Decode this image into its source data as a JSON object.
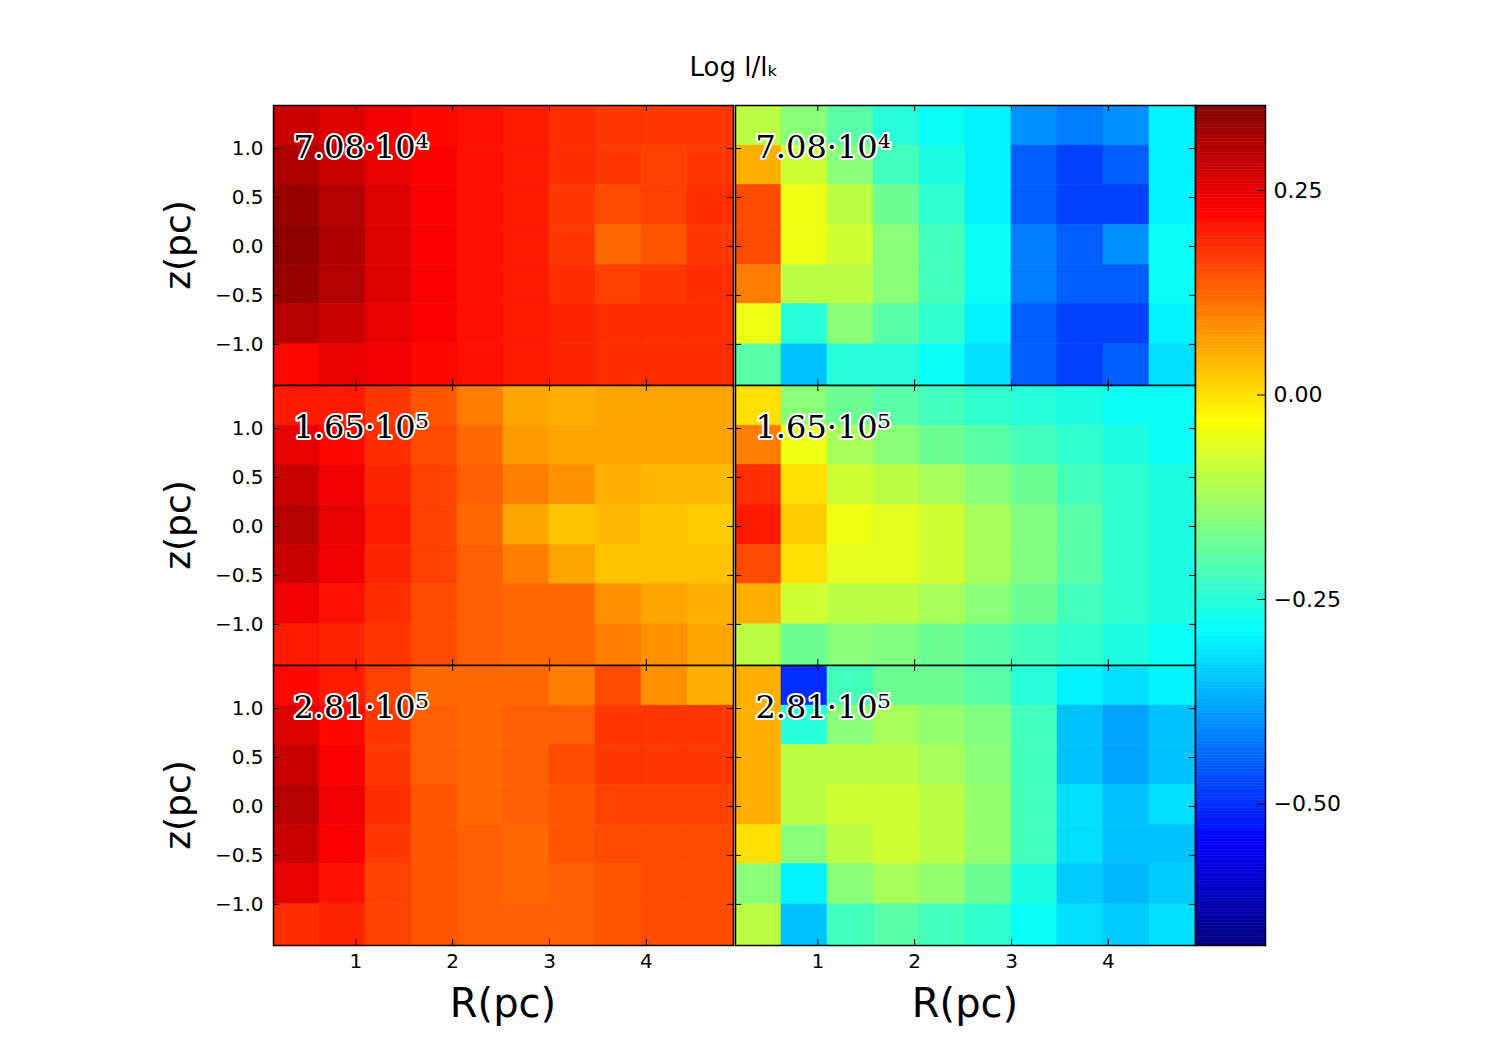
{
  "chart_data": {
    "type": "heatmap",
    "title": "Log l/lₖ",
    "xlabel": "R(pc)",
    "ylabel": "z(pc)",
    "xlim": [
      0.15,
      4.9
    ],
    "ylim": [
      -1.42,
      1.44
    ],
    "xticks": [
      1,
      2,
      3,
      4
    ],
    "yticks": [
      {
        "value": 1.0,
        "label": "1.0"
      },
      {
        "value": 0.5,
        "label": "0.5"
      },
      {
        "value": 0.0,
        "label": "0.0"
      },
      {
        "value": -0.5,
        "label": "−0.5"
      },
      {
        "value": -1.0,
        "label": "−1.0"
      }
    ],
    "x_edges": [
      0.15,
      0.625,
      1.1,
      1.575,
      2.05,
      2.525,
      3.0,
      3.475,
      3.95,
      4.425,
      4.9
    ],
    "y_edges": [
      1.44,
      1.03,
      0.63,
      0.22,
      -0.19,
      -0.59,
      -1.0,
      -1.42
    ],
    "colorbar": {
      "range": [
        -0.673,
        0.354
      ],
      "ticks": [
        {
          "value": 0.25,
          "label": "0.25"
        },
        {
          "value": 0.0,
          "label": "0.00"
        },
        {
          "value": -0.25,
          "label": "−0.25"
        },
        {
          "value": -0.5,
          "label": "−0.50"
        }
      ]
    },
    "panels": [
      {
        "annotation": "7.08·10⁴",
        "cells": [
          [
            0.28,
            0.26,
            0.24,
            0.22,
            0.21,
            0.2,
            0.18,
            0.17,
            0.17,
            0.17
          ],
          [
            0.31,
            0.28,
            0.25,
            0.23,
            0.21,
            0.2,
            0.18,
            0.17,
            0.16,
            0.17
          ],
          [
            0.33,
            0.3,
            0.26,
            0.23,
            0.21,
            0.2,
            0.17,
            0.15,
            0.16,
            0.18
          ],
          [
            0.34,
            0.31,
            0.26,
            0.23,
            0.21,
            0.2,
            0.17,
            0.12,
            0.14,
            0.17
          ],
          [
            0.33,
            0.3,
            0.26,
            0.23,
            0.21,
            0.2,
            0.18,
            0.16,
            0.17,
            0.18
          ],
          [
            0.3,
            0.28,
            0.25,
            0.23,
            0.21,
            0.2,
            0.19,
            0.18,
            0.18,
            0.18
          ],
          [
            0.22,
            0.25,
            0.24,
            0.22,
            0.21,
            0.2,
            0.19,
            0.18,
            0.18,
            0.18
          ]
        ]
      },
      {
        "annotation": "7.08·10⁴",
        "cells": [
          [
            -0.1,
            -0.15,
            -0.2,
            -0.25,
            -0.28,
            -0.3,
            -0.4,
            -0.42,
            -0.4,
            -0.3
          ],
          [
            0.05,
            -0.08,
            -0.15,
            -0.22,
            -0.26,
            -0.3,
            -0.45,
            -0.48,
            -0.45,
            -0.3
          ],
          [
            0.15,
            -0.05,
            -0.1,
            -0.18,
            -0.24,
            -0.3,
            -0.45,
            -0.48,
            -0.48,
            -0.3
          ],
          [
            0.15,
            -0.05,
            -0.08,
            -0.15,
            -0.22,
            -0.28,
            -0.42,
            -0.45,
            -0.4,
            -0.28
          ],
          [
            0.1,
            -0.1,
            -0.1,
            -0.15,
            -0.22,
            -0.28,
            -0.42,
            -0.45,
            -0.45,
            -0.28
          ],
          [
            -0.05,
            -0.25,
            -0.15,
            -0.2,
            -0.24,
            -0.3,
            -0.45,
            -0.48,
            -0.48,
            -0.3
          ],
          [
            -0.2,
            -0.35,
            -0.25,
            -0.25,
            -0.28,
            -0.32,
            -0.45,
            -0.48,
            -0.45,
            -0.32
          ]
        ]
      },
      {
        "annotation": "1.65·10⁵",
        "cells": [
          [
            0.2,
            0.2,
            0.17,
            0.14,
            0.1,
            0.06,
            0.05,
            0.06,
            0.06,
            0.06
          ],
          [
            0.25,
            0.22,
            0.18,
            0.15,
            0.12,
            0.07,
            0.06,
            0.06,
            0.06,
            0.06
          ],
          [
            0.28,
            0.24,
            0.19,
            0.16,
            0.13,
            0.1,
            0.08,
            0.05,
            0.04,
            0.04
          ],
          [
            0.3,
            0.25,
            0.2,
            0.16,
            0.12,
            0.06,
            0.03,
            0.04,
            0.03,
            0.02
          ],
          [
            0.28,
            0.24,
            0.19,
            0.16,
            0.13,
            0.1,
            0.06,
            0.03,
            0.03,
            0.03
          ],
          [
            0.24,
            0.21,
            0.18,
            0.15,
            0.13,
            0.12,
            0.12,
            0.08,
            0.06,
            0.05
          ],
          [
            0.2,
            0.19,
            0.17,
            0.15,
            0.13,
            0.12,
            0.12,
            0.1,
            0.08,
            0.06
          ]
        ]
      },
      {
        "annotation": "1.65·10⁵",
        "cells": [
          [
            0.0,
            -0.15,
            -0.18,
            -0.2,
            -0.22,
            -0.24,
            -0.25,
            -0.26,
            -0.28,
            -0.28
          ],
          [
            0.1,
            -0.05,
            -0.12,
            -0.15,
            -0.18,
            -0.2,
            -0.22,
            -0.24,
            -0.26,
            -0.28
          ],
          [
            0.18,
            0.0,
            -0.08,
            -0.1,
            -0.12,
            -0.15,
            -0.18,
            -0.22,
            -0.24,
            -0.26
          ],
          [
            0.2,
            0.02,
            -0.05,
            -0.06,
            -0.08,
            -0.12,
            -0.16,
            -0.2,
            -0.24,
            -0.26
          ],
          [
            0.15,
            0.0,
            -0.06,
            -0.06,
            -0.08,
            -0.12,
            -0.16,
            -0.2,
            -0.24,
            -0.26
          ],
          [
            0.05,
            -0.08,
            -0.1,
            -0.1,
            -0.12,
            -0.15,
            -0.18,
            -0.22,
            -0.24,
            -0.26
          ],
          [
            -0.1,
            -0.18,
            -0.15,
            -0.16,
            -0.18,
            -0.2,
            -0.22,
            -0.24,
            -0.26,
            -0.28
          ]
        ]
      },
      {
        "annotation": "2.81·10⁵",
        "cells": [
          [
            0.22,
            0.2,
            0.16,
            0.12,
            0.12,
            0.12,
            0.1,
            0.15,
            0.08,
            0.05
          ],
          [
            0.26,
            0.22,
            0.17,
            0.13,
            0.12,
            0.13,
            0.13,
            0.17,
            0.17,
            0.17
          ],
          [
            0.28,
            0.23,
            0.17,
            0.13,
            0.12,
            0.13,
            0.15,
            0.17,
            0.17,
            0.17
          ],
          [
            0.3,
            0.24,
            0.18,
            0.14,
            0.12,
            0.13,
            0.14,
            0.16,
            0.16,
            0.16
          ],
          [
            0.28,
            0.23,
            0.17,
            0.14,
            0.13,
            0.12,
            0.14,
            0.15,
            0.15,
            0.15
          ],
          [
            0.25,
            0.21,
            0.16,
            0.14,
            0.13,
            0.12,
            0.13,
            0.14,
            0.15,
            0.15
          ],
          [
            0.18,
            0.19,
            0.16,
            0.14,
            0.13,
            0.13,
            0.13,
            0.14,
            0.15,
            0.15
          ]
        ]
      },
      {
        "annotation": "2.81·10⁵",
        "cells": [
          [
            0.05,
            -0.5,
            -0.22,
            -0.18,
            -0.18,
            -0.2,
            -0.25,
            -0.3,
            -0.32,
            -0.3
          ],
          [
            0.05,
            -0.25,
            -0.15,
            -0.12,
            -0.14,
            -0.16,
            -0.22,
            -0.35,
            -0.38,
            -0.35
          ],
          [
            0.05,
            -0.1,
            -0.1,
            -0.1,
            -0.12,
            -0.15,
            -0.22,
            -0.35,
            -0.38,
            -0.35
          ],
          [
            0.05,
            -0.1,
            -0.08,
            -0.08,
            -0.1,
            -0.14,
            -0.22,
            -0.32,
            -0.35,
            -0.32
          ],
          [
            0.0,
            -0.15,
            -0.1,
            -0.08,
            -0.1,
            -0.14,
            -0.22,
            -0.32,
            -0.35,
            -0.35
          ],
          [
            -0.15,
            -0.3,
            -0.15,
            -0.12,
            -0.14,
            -0.18,
            -0.26,
            -0.34,
            -0.36,
            -0.34
          ],
          [
            -0.1,
            -0.35,
            -0.22,
            -0.2,
            -0.22,
            -0.24,
            -0.28,
            -0.32,
            -0.34,
            -0.32
          ]
        ]
      }
    ]
  }
}
